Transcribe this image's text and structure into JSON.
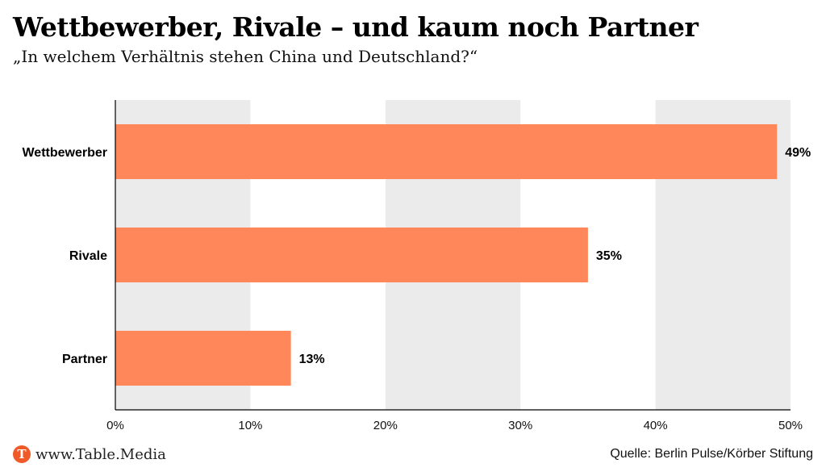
{
  "header": {
    "title": "Wettbewerber, Rivale – und kaum noch Partner",
    "subtitle": "„In welchem Verhältnis stehen China und Deutschland?“"
  },
  "footer": {
    "logo_letter": "T",
    "site": "www.Table.Media",
    "source": "Quelle: Berlin Pulse/Körber Stiftung"
  },
  "colors": {
    "bar": "#ff875a",
    "band": "#ebebeb",
    "logo": "#f05a28"
  },
  "chart_data": {
    "type": "bar",
    "orientation": "horizontal",
    "title": "Wettbewerber, Rivale – und kaum noch Partner",
    "subtitle": "„In welchem Verhältnis stehen China und Deutschland?“",
    "categories": [
      "Wettbewerber",
      "Rivale",
      "Partner"
    ],
    "values": [
      49,
      35,
      13
    ],
    "value_labels": [
      "49%",
      "35%",
      "13%"
    ],
    "xlabel": "",
    "ylabel": "",
    "xlim": [
      0,
      50
    ],
    "xticks": [
      0,
      10,
      20,
      30,
      40,
      50
    ],
    "xtick_labels": [
      "0%",
      "10%",
      "20%",
      "30%",
      "40%",
      "50%"
    ],
    "grid": "alternating vertical bands",
    "legend": "none"
  }
}
